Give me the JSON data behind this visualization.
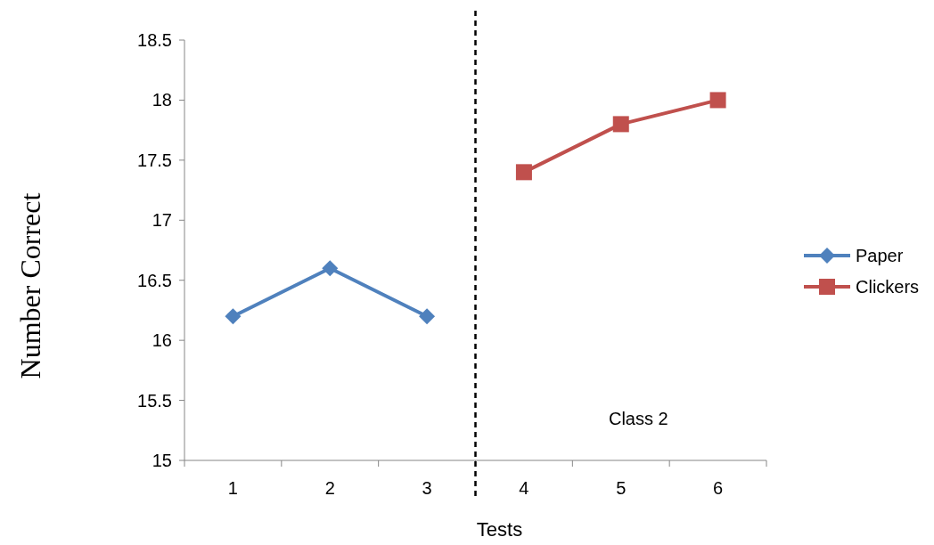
{
  "chart_data": {
    "type": "line",
    "xlabel": "Tests",
    "ylabel": "Number Correct",
    "categories": [
      "1",
      "2",
      "3",
      "4",
      "5",
      "6"
    ],
    "ylim": [
      15,
      18.5
    ],
    "yticks": [
      15,
      15.5,
      16,
      16.5,
      17,
      17.5,
      18,
      18.5
    ],
    "series": [
      {
        "name": "Paper",
        "color": "#4f81bd",
        "marker": "diamond",
        "values": [
          16.2,
          16.6,
          16.2,
          null,
          null,
          null
        ]
      },
      {
        "name": "Clickers",
        "color": "#c0504d",
        "marker": "square",
        "values": [
          null,
          null,
          null,
          17.4,
          17.8,
          18.0
        ]
      }
    ],
    "annotations": [
      "Class 2"
    ],
    "grid": false,
    "legend": "right"
  }
}
